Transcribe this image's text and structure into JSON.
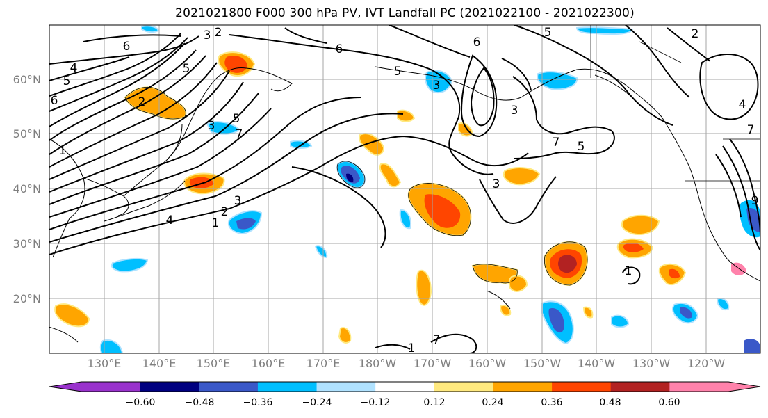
{
  "title": "2021021800 F000 300 hPa PV, IVT Landfall PC (2021022100 - 2021022300)",
  "lat_labels": [
    "60°N",
    "50°N",
    "40°N",
    "30°N",
    "20°N"
  ],
  "lon_labels": [
    "130°E",
    "140°E",
    "150°E",
    "160°E",
    "170°E",
    "180°W",
    "170°W",
    "160°W",
    "150°W",
    "140°W",
    "130°W",
    "120°W"
  ],
  "contour_labels": [
    "2",
    "3",
    "5",
    "6",
    "4",
    "5",
    "6",
    "1",
    "2",
    "3",
    "5",
    "7",
    "3",
    "5",
    "6",
    "3",
    "1",
    "2",
    "4",
    "5",
    "7",
    "3",
    "9",
    "4",
    "1",
    "7",
    "1",
    "3",
    "5",
    "6",
    "2",
    "7"
  ],
  "colorbar": {
    "ticks": [
      "−0.60",
      "−0.48",
      "−0.36",
      "−0.24",
      "−0.12",
      "0.12",
      "0.24",
      "0.36",
      "0.48",
      "0.60"
    ],
    "colors": [
      "#9932cc",
      "#000080",
      "#3a58c8",
      "#00bfff",
      "#b0e2ff",
      "#ffffff",
      "#ffe97f",
      "#ffa500",
      "#ff4500",
      "#b22222",
      "#ff82ab"
    ]
  }
}
